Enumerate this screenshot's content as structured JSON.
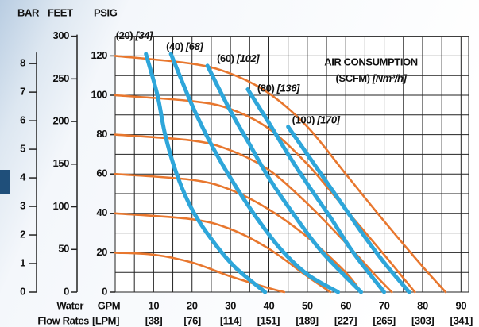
{
  "chart_data": {
    "type": "line",
    "header_bar": "BAR",
    "header_feet": "FEET",
    "header_psig": "PSIG",
    "x_unit": "GPM",
    "x2_unit": "[LPM]",
    "x_title_1": "Water",
    "x_title_2": "Flow Rates",
    "annotation_1": "AIR CONSUMPTION",
    "annotation_2": "(SCFM)",
    "annotation_3": "[Nm³/h]",
    "xlim": [
      0,
      92
    ],
    "xticks": [
      10,
      20,
      30,
      40,
      50,
      60,
      70,
      80,
      90
    ],
    "x2lim": [
      0,
      348.26
    ],
    "x2ticks": [
      {
        "value": 38,
        "label": "[38]"
      },
      {
        "value": 76,
        "label": "[76]"
      },
      {
        "value": 114,
        "label": "[114]"
      },
      {
        "value": 151,
        "label": "[151]"
      },
      {
        "value": 189,
        "label": "[189]"
      },
      {
        "value": 227,
        "label": "[227]"
      },
      {
        "value": 265,
        "label": "[265]"
      },
      {
        "value": 303,
        "label": "[303]"
      },
      {
        "value": 341,
        "label": "[341]"
      }
    ],
    "ylim": [
      0,
      130
    ],
    "yticks": [
      0,
      20,
      40,
      60,
      80,
      100,
      120
    ],
    "y_feet_lim": [
      0,
      300
    ],
    "y_feet_ticks": [
      0,
      50,
      100,
      150,
      200,
      250,
      300
    ],
    "y_bar_lim": [
      0,
      8.96
    ],
    "y_bar_ticks": [
      0,
      1,
      2,
      3,
      4,
      5,
      6,
      7,
      8
    ],
    "grid": true,
    "x_grid": [
      0,
      5,
      10,
      15,
      20,
      25,
      30,
      35,
      40,
      45,
      50,
      55,
      60,
      65,
      70,
      75,
      80,
      85,
      90,
      92
    ],
    "y_grid": [
      0,
      10,
      20,
      30,
      40,
      50,
      60,
      70,
      80,
      90,
      100,
      110,
      120,
      130
    ],
    "series": [
      {
        "color": "#e8772e",
        "x": [
          0,
          10,
          20,
          30,
          40,
          44
        ],
        "values": [
          20,
          19,
          15,
          8,
          2,
          0
        ]
      },
      {
        "color": "#e8772e",
        "x": [
          0,
          20,
          30,
          40,
          50,
          56
        ],
        "values": [
          40,
          37,
          32,
          22,
          8,
          0
        ]
      },
      {
        "color": "#e8772e",
        "x": [
          0,
          20,
          30,
          40,
          50,
          60,
          64
        ],
        "values": [
          60,
          57,
          52,
          42,
          28,
          10,
          0
        ]
      },
      {
        "color": "#e8772e",
        "x": [
          0,
          20,
          30,
          40,
          50,
          60,
          68,
          72
        ],
        "values": [
          80,
          77,
          72,
          62,
          45,
          25,
          8,
          0
        ]
      },
      {
        "color": "#e8772e",
        "x": [
          0,
          20,
          30,
          40,
          50,
          60,
          70,
          78
        ],
        "values": [
          100,
          97,
          93,
          83,
          65,
          42,
          19,
          0
        ]
      },
      {
        "color": "#e8772e",
        "x": [
          0,
          20,
          30,
          40,
          50,
          60,
          70,
          80,
          86
        ],
        "values": [
          120,
          116,
          111,
          101,
          84,
          60,
          36,
          13,
          0
        ]
      },
      {
        "color": "#2ea6da",
        "label": "(20)",
        "label_metric": "[34]",
        "x": [
          8,
          11,
          13,
          16,
          20,
          25,
          31,
          39
        ],
        "values": [
          121,
          100,
          80,
          60,
          42,
          27,
          13,
          0
        ]
      },
      {
        "color": "#2ea6da",
        "label": "(40)",
        "label_metric": "[68]",
        "x": [
          14.5,
          20,
          25,
          30,
          36,
          43,
          50,
          58
        ],
        "values": [
          121,
          95,
          75,
          58,
          40,
          22,
          9,
          0
        ]
      },
      {
        "color": "#2ea6da",
        "label": "(60)",
        "label_metric": "[102]",
        "x": [
          24,
          30,
          35,
          40,
          47,
          54,
          64
        ],
        "values": [
          115,
          92,
          75,
          58,
          38,
          20,
          0
        ]
      },
      {
        "color": "#2ea6da",
        "label": "(80)",
        "label_metric": "[136]",
        "x": [
          34.5,
          40,
          45,
          50,
          56,
          62,
          70
        ],
        "values": [
          103,
          86,
          70,
          55,
          38,
          20,
          0
        ]
      },
      {
        "color": "#2ea6da",
        "label": "(100)",
        "label_metric": "[170]",
        "x": [
          45,
          50,
          55,
          60,
          65,
          70,
          76.5
        ],
        "values": [
          84,
          70,
          56,
          42,
          28,
          15,
          0
        ]
      }
    ]
  }
}
